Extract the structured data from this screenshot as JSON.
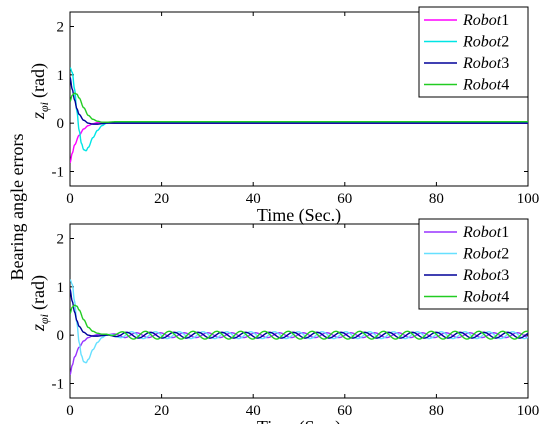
{
  "shared_ylabel": "Bearing angle errors",
  "chart_data": [
    {
      "type": "line",
      "title": "",
      "xlabel": "Time (Sec.)",
      "ylabel_symbol": "z",
      "ylabel_sub": "φi",
      "ylabel_unit": "(rad)",
      "xlim": [
        0,
        100
      ],
      "ylim": [
        -1.3,
        2.3
      ],
      "xticks": [
        0,
        20,
        40,
        60,
        80,
        100
      ],
      "yticks": [
        -1,
        0,
        1,
        2
      ],
      "grid": false,
      "legend": "top-right",
      "series": [
        {
          "name": "Robot",
          "idx": "1",
          "color": "#ff00ff",
          "x": [
            0,
            0.5,
            1,
            2,
            3,
            4,
            5,
            6,
            8,
            10,
            12,
            100
          ],
          "y": [
            -0.82,
            -0.62,
            -0.45,
            -0.25,
            -0.12,
            -0.05,
            -0.01,
            0.01,
            0.01,
            0.0,
            0.0,
            0.0
          ]
        },
        {
          "name": "Robot",
          "idx": "2",
          "color": "#00e5e5",
          "x": [
            0,
            0.5,
            1,
            1.5,
            2,
            2.5,
            3,
            3.5,
            4,
            5,
            6,
            7,
            8,
            9,
            10,
            12,
            100
          ],
          "y": [
            1.15,
            1.05,
            0.7,
            0.25,
            -0.15,
            -0.42,
            -0.55,
            -0.57,
            -0.5,
            -0.3,
            -0.15,
            -0.05,
            0.0,
            0.02,
            0.02,
            0.01,
            0.01
          ]
        },
        {
          "name": "Robot",
          "idx": "3",
          "color": "#000099",
          "x": [
            0,
            0.5,
            1,
            1.5,
            2,
            3,
            4,
            5,
            6,
            7,
            8,
            10,
            100
          ],
          "y": [
            0.95,
            0.7,
            0.48,
            0.3,
            0.18,
            0.06,
            0.0,
            -0.02,
            -0.02,
            -0.01,
            0.0,
            0.0,
            0.0
          ]
        },
        {
          "name": "Robot",
          "idx": "4",
          "color": "#22cc22",
          "x": [
            0,
            0.5,
            1,
            1.5,
            2,
            3,
            4,
            5,
            6,
            7,
            8,
            10,
            12,
            100
          ],
          "y": [
            0.45,
            0.58,
            0.62,
            0.6,
            0.52,
            0.32,
            0.16,
            0.08,
            0.04,
            0.02,
            0.02,
            0.03,
            0.03,
            0.03
          ]
        }
      ]
    },
    {
      "type": "line",
      "title": "",
      "xlabel": "Time (Sec.)",
      "ylabel_symbol": "z",
      "ylabel_sub": "φi",
      "ylabel_unit": "(rad)",
      "xlim": [
        0,
        100
      ],
      "ylim": [
        -1.3,
        2.3
      ],
      "xticks": [
        0,
        20,
        40,
        60,
        80,
        100
      ],
      "yticks": [
        -1,
        0,
        1,
        2
      ],
      "grid": false,
      "legend": "top-right",
      "oscillation": {
        "start": 8,
        "period": 5.2,
        "amplitudes": [
          0.05,
          0.07,
          0.06,
          0.08
        ]
      },
      "series": [
        {
          "name": "Robot",
          "idx": "1",
          "color": "#9933ff",
          "x": [
            0,
            0.5,
            1,
            2,
            3,
            4,
            5,
            6,
            8
          ],
          "y": [
            -0.82,
            -0.62,
            -0.45,
            -0.25,
            -0.12,
            -0.05,
            -0.01,
            0.01,
            0.01
          ]
        },
        {
          "name": "Robot",
          "idx": "2",
          "color": "#66e0ff",
          "x": [
            0,
            0.5,
            1,
            1.5,
            2,
            2.5,
            3,
            3.5,
            4,
            5,
            6,
            7,
            8
          ],
          "y": [
            1.15,
            1.05,
            0.7,
            0.25,
            -0.15,
            -0.42,
            -0.55,
            -0.57,
            -0.5,
            -0.3,
            -0.15,
            -0.05,
            0.0
          ]
        },
        {
          "name": "Robot",
          "idx": "3",
          "color": "#000099",
          "x": [
            0,
            0.5,
            1,
            1.5,
            2,
            3,
            4,
            5,
            6,
            7,
            8
          ],
          "y": [
            0.95,
            0.7,
            0.48,
            0.3,
            0.18,
            0.06,
            0.0,
            -0.02,
            -0.02,
            -0.01,
            0.0
          ]
        },
        {
          "name": "Robot",
          "idx": "4",
          "color": "#22cc22",
          "x": [
            0,
            0.5,
            1,
            1.5,
            2,
            3,
            4,
            5,
            6,
            7,
            8
          ],
          "y": [
            0.45,
            0.58,
            0.62,
            0.6,
            0.52,
            0.32,
            0.16,
            0.08,
            0.04,
            0.02,
            0.02
          ]
        }
      ]
    }
  ]
}
